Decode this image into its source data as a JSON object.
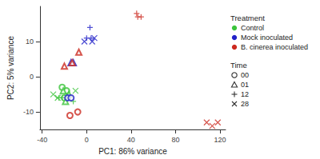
{
  "chart_data": {
    "type": "scatter",
    "x_label": "PC1: 86% variance",
    "y_label": "PC2: 5% variance",
    "xlim": [
      -42,
      125
    ],
    "xticks": [
      -40,
      0,
      40,
      80,
      120
    ],
    "ylim": [
      -15,
      20
    ],
    "yticks": [
      -10,
      0,
      10
    ],
    "grid": false,
    "legend": "right",
    "color_legend_title": "Treatment",
    "marker_legend_title": "Time",
    "markers": [
      {
        "name": "00",
        "marker": "circle"
      },
      {
        "name": "01",
        "marker": "triangle"
      },
      {
        "name": "12",
        "marker": "plus"
      },
      {
        "name": "28",
        "marker": "x"
      }
    ],
    "series": [
      {
        "name": "Control",
        "color": "#3cc43c",
        "points": [
          {
            "time": "00",
            "x": -22,
            "y": -3
          },
          {
            "time": "00",
            "x": -20,
            "y": -6
          },
          {
            "time": "00",
            "x": -18,
            "y": -4
          },
          {
            "time": "01",
            "x": -21,
            "y": -4
          },
          {
            "time": "01",
            "x": -16,
            "y": -5
          },
          {
            "time": "01",
            "x": -19,
            "y": -7
          },
          {
            "time": "12",
            "x": -25,
            "y": -6
          },
          {
            "time": "12",
            "x": -22,
            "y": -6
          },
          {
            "time": "12",
            "x": -12,
            "y": -7
          },
          {
            "time": "28",
            "x": -30,
            "y": -5
          },
          {
            "time": "28",
            "x": -26,
            "y": -6
          },
          {
            "time": "28",
            "x": -10,
            "y": -4
          }
        ]
      },
      {
        "name": "Mock inoculated",
        "color": "#2222c8",
        "points": [
          {
            "time": "00",
            "x": -17,
            "y": -6
          },
          {
            "time": "00",
            "x": -14,
            "y": -6
          },
          {
            "time": "01",
            "x": -14,
            "y": 4
          },
          {
            "time": "01",
            "x": -12,
            "y": 4
          },
          {
            "time": "12",
            "x": 0,
            "y": 11
          },
          {
            "time": "12",
            "x": 4,
            "y": 11
          },
          {
            "time": "12",
            "x": 3,
            "y": 14
          },
          {
            "time": "28",
            "x": -2,
            "y": 10
          },
          {
            "time": "28",
            "x": 5,
            "y": 10
          },
          {
            "time": "28",
            "x": 7,
            "y": 11
          }
        ]
      },
      {
        "name": "B. cinerea inoculated",
        "color": "#cc2a20",
        "points": [
          {
            "time": "00",
            "x": -15,
            "y": -11
          },
          {
            "time": "00",
            "x": -8,
            "y": -10
          },
          {
            "time": "01",
            "x": -20,
            "y": 3
          },
          {
            "time": "01",
            "x": -7,
            "y": 7
          },
          {
            "time": "01",
            "x": -13,
            "y": 4
          },
          {
            "time": "12",
            "x": 45,
            "y": 18
          },
          {
            "time": "12",
            "x": 46,
            "y": 17
          },
          {
            "time": "12",
            "x": 49,
            "y": 17
          },
          {
            "time": "28",
            "x": 108,
            "y": -13
          },
          {
            "time": "28",
            "x": 113,
            "y": -14
          },
          {
            "time": "28",
            "x": 118,
            "y": -13
          }
        ]
      }
    ]
  }
}
